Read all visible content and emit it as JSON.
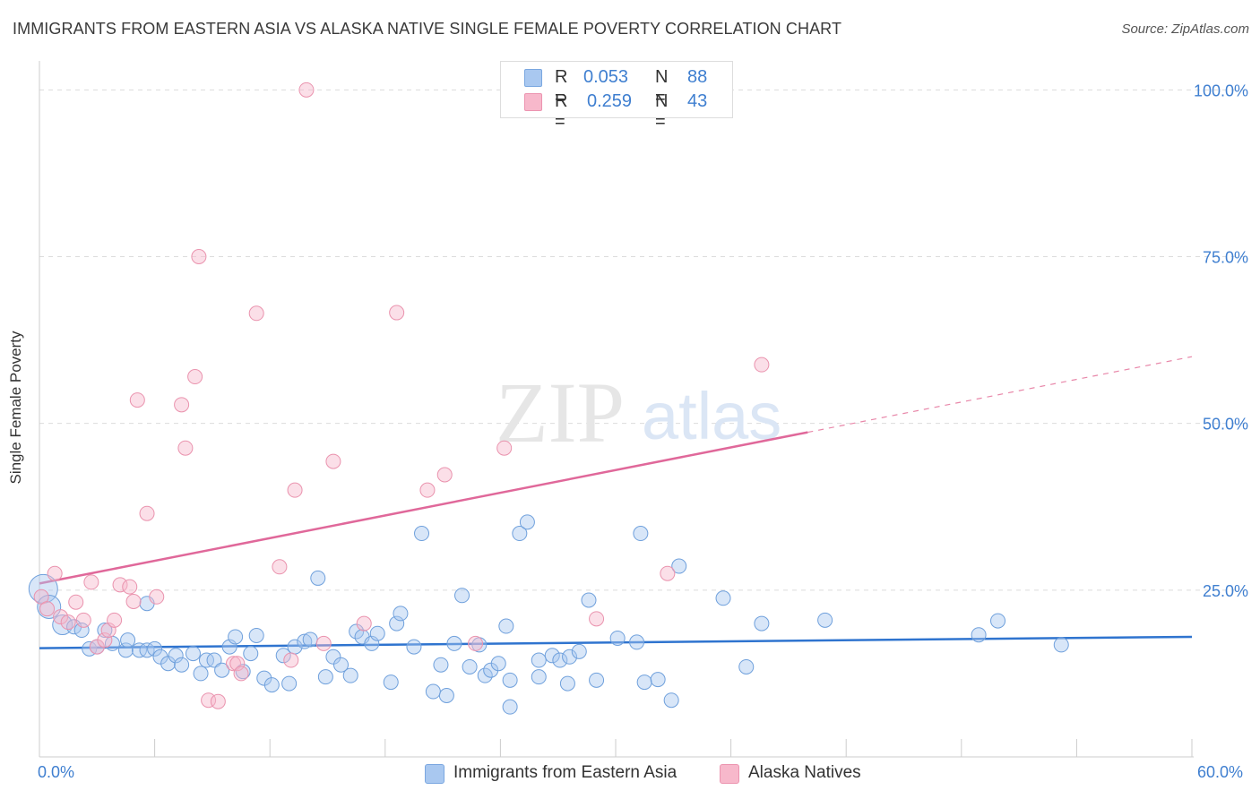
{
  "title": "IMMIGRANTS FROM EASTERN ASIA VS ALASKA NATIVE SINGLE FEMALE POVERTY CORRELATION CHART",
  "source": "Source: ZipAtlas.com",
  "legend": {
    "rows": [
      {
        "r_label": "R =",
        "r_value": "0.053",
        "n_label": "N =",
        "n_value": "88",
        "color": "#a9c8f0"
      },
      {
        "r_label": "R =",
        "r_value": "0.259",
        "n_label": "N =",
        "n_value": "43",
        "color": "#f7b8cb"
      }
    ]
  },
  "bottom_legend": [
    {
      "label": "Immigrants from Eastern Asia",
      "color": "#a9c8f0"
    },
    {
      "label": "Alaska Natives",
      "color": "#f7b8cb"
    }
  ],
  "x_axis": {
    "min_label": "0.0%",
    "max_label": "60.0%"
  },
  "watermark": {
    "zip": "ZIP",
    "atlas": "atlas"
  },
  "colors": {
    "blue": "#3f7fd0",
    "blue_fill": "#a9c8f0",
    "pink": "#e56e97",
    "pink_fill": "#f7b8cb",
    "grid": "#dddddd"
  },
  "chart_data": {
    "type": "scatter",
    "xlabel": "",
    "ylabel": "Single Female Poverty",
    "xlim": [
      0,
      60
    ],
    "ylim": [
      0,
      103
    ],
    "y_ticks": [
      {
        "value": 25,
        "label": "25.0%"
      },
      {
        "value": 50,
        "label": "50.0%"
      },
      {
        "value": 75,
        "label": "75.0%"
      },
      {
        "value": 100,
        "label": "100.0%"
      }
    ],
    "series": [
      {
        "name": "Immigrants from Eastern Asia",
        "color": "#3f7fd0",
        "r": 0.053,
        "n": 88,
        "trend": {
          "x0": 0,
          "y0": 16.3,
          "x1": 60,
          "y1": 18.0,
          "solid_until": 60
        },
        "points": [
          [
            0.2,
            25.2
          ],
          [
            0.5,
            22.5
          ],
          [
            1.2,
            19.8
          ],
          [
            1.8,
            19.5
          ],
          [
            2.2,
            19.0
          ],
          [
            2.6,
            16.2
          ],
          [
            3.0,
            16.5
          ],
          [
            3.4,
            19.0
          ],
          [
            3.8,
            17.0
          ],
          [
            4.5,
            16.0
          ],
          [
            4.6,
            17.5
          ],
          [
            5.2,
            16.0
          ],
          [
            5.6,
            16.0
          ],
          [
            5.6,
            23.0
          ],
          [
            6.0,
            16.2
          ],
          [
            6.3,
            15.0
          ],
          [
            6.7,
            14.0
          ],
          [
            7.1,
            15.2
          ],
          [
            7.4,
            13.8
          ],
          [
            8.0,
            15.5
          ],
          [
            8.4,
            12.5
          ],
          [
            8.7,
            14.5
          ],
          [
            9.1,
            14.5
          ],
          [
            9.5,
            13.0
          ],
          [
            9.9,
            16.5
          ],
          [
            10.2,
            18.0
          ],
          [
            10.6,
            12.8
          ],
          [
            11.0,
            15.5
          ],
          [
            11.3,
            18.2
          ],
          [
            11.7,
            11.8
          ],
          [
            12.1,
            10.8
          ],
          [
            12.7,
            15.2
          ],
          [
            13.0,
            11.0
          ],
          [
            13.3,
            16.5
          ],
          [
            13.8,
            17.3
          ],
          [
            14.1,
            17.6
          ],
          [
            14.9,
            12.0
          ],
          [
            14.5,
            26.8
          ],
          [
            15.3,
            15.0
          ],
          [
            15.7,
            13.8
          ],
          [
            16.2,
            12.2
          ],
          [
            16.5,
            18.8
          ],
          [
            16.8,
            18.0
          ],
          [
            17.3,
            17.0
          ],
          [
            17.6,
            18.5
          ],
          [
            18.3,
            11.2
          ],
          [
            18.6,
            20.0
          ],
          [
            18.8,
            21.5
          ],
          [
            19.5,
            16.5
          ],
          [
            19.9,
            33.5
          ],
          [
            20.5,
            9.8
          ],
          [
            20.9,
            13.8
          ],
          [
            21.2,
            9.2
          ],
          [
            21.6,
            17.0
          ],
          [
            22.0,
            24.2
          ],
          [
            22.4,
            13.5
          ],
          [
            22.9,
            16.8
          ],
          [
            23.2,
            12.2
          ],
          [
            23.5,
            13.0
          ],
          [
            23.9,
            14.0
          ],
          [
            24.3,
            19.6
          ],
          [
            24.5,
            7.5
          ],
          [
            25.0,
            33.5
          ],
          [
            25.4,
            35.2
          ],
          [
            26.0,
            14.5
          ],
          [
            26.7,
            15.2
          ],
          [
            27.1,
            14.5
          ],
          [
            27.6,
            15.0
          ],
          [
            28.1,
            15.8
          ],
          [
            28.6,
            23.5
          ],
          [
            29.0,
            11.5
          ],
          [
            30.1,
            17.8
          ],
          [
            31.1,
            17.2
          ],
          [
            31.3,
            33.5
          ],
          [
            31.5,
            11.2
          ],
          [
            32.2,
            11.6
          ],
          [
            32.9,
            8.5
          ],
          [
            33.3,
            28.6
          ],
          [
            35.6,
            23.8
          ],
          [
            36.8,
            13.5
          ],
          [
            37.6,
            20.0
          ],
          [
            40.9,
            20.5
          ],
          [
            27.5,
            11.0
          ],
          [
            24.5,
            11.5
          ],
          [
            26.0,
            12.0
          ],
          [
            48.9,
            18.3
          ],
          [
            49.9,
            20.4
          ],
          [
            53.2,
            16.8
          ]
        ]
      },
      {
        "name": "Alaska Natives",
        "color": "#e56e97",
        "r": 0.259,
        "n": 43,
        "trend": {
          "x0": 0,
          "y0": 26.0,
          "x1": 60,
          "y1": 60.0,
          "solid_until": 40
        },
        "points": [
          [
            0.1,
            24.0
          ],
          [
            0.4,
            22.2
          ],
          [
            0.8,
            27.5
          ],
          [
            1.1,
            21.0
          ],
          [
            1.5,
            20.2
          ],
          [
            1.9,
            23.2
          ],
          [
            2.3,
            20.5
          ],
          [
            2.7,
            26.2
          ],
          [
            3.0,
            16.5
          ],
          [
            3.4,
            17.5
          ],
          [
            3.6,
            19.0
          ],
          [
            3.9,
            20.5
          ],
          [
            4.2,
            25.8
          ],
          [
            4.7,
            25.5
          ],
          [
            4.9,
            23.3
          ],
          [
            5.1,
            53.5
          ],
          [
            5.6,
            36.5
          ],
          [
            6.1,
            24.0
          ],
          [
            7.4,
            52.8
          ],
          [
            7.6,
            46.3
          ],
          [
            8.1,
            57.0
          ],
          [
            8.3,
            75.0
          ],
          [
            8.8,
            8.5
          ],
          [
            9.3,
            8.3
          ],
          [
            10.1,
            14.0
          ],
          [
            10.3,
            14.0
          ],
          [
            11.3,
            66.5
          ],
          [
            12.5,
            28.5
          ],
          [
            13.1,
            14.5
          ],
          [
            13.3,
            40.0
          ],
          [
            13.9,
            100.0
          ],
          [
            14.8,
            17.0
          ],
          [
            15.3,
            44.3
          ],
          [
            16.9,
            20.0
          ],
          [
            18.6,
            66.6
          ],
          [
            20.2,
            40.0
          ],
          [
            21.1,
            42.3
          ],
          [
            22.7,
            17.0
          ],
          [
            24.2,
            46.3
          ],
          [
            29.0,
            20.7
          ],
          [
            32.7,
            27.5
          ],
          [
            37.6,
            58.8
          ],
          [
            10.5,
            12.5
          ]
        ]
      }
    ]
  }
}
